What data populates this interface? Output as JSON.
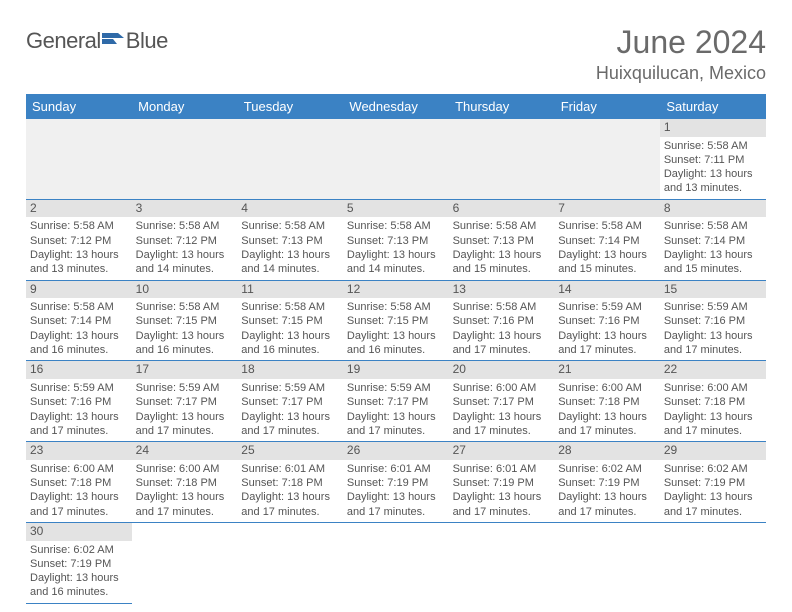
{
  "brand": {
    "part1": "General",
    "part2": "Blue"
  },
  "title": "June 2024",
  "location": "Huixquilucan, Mexico",
  "day_headers": [
    "Sunday",
    "Monday",
    "Tuesday",
    "Wednesday",
    "Thursday",
    "Friday",
    "Saturday"
  ],
  "colors": {
    "header_bg": "#3b82c4",
    "header_text": "#ffffff",
    "daynum_bg": "#e3e3e3",
    "border": "#3b82c4",
    "text": "#555555",
    "title_text": "#6a6a6a"
  },
  "leading_blanks": 6,
  "trailing_blanks": 6,
  "days": [
    {
      "n": "1",
      "sr": "Sunrise: 5:58 AM",
      "ss": "Sunset: 7:11 PM",
      "dl": "Daylight: 13 hours and 13 minutes."
    },
    {
      "n": "2",
      "sr": "Sunrise: 5:58 AM",
      "ss": "Sunset: 7:12 PM",
      "dl": "Daylight: 13 hours and 13 minutes."
    },
    {
      "n": "3",
      "sr": "Sunrise: 5:58 AM",
      "ss": "Sunset: 7:12 PM",
      "dl": "Daylight: 13 hours and 14 minutes."
    },
    {
      "n": "4",
      "sr": "Sunrise: 5:58 AM",
      "ss": "Sunset: 7:13 PM",
      "dl": "Daylight: 13 hours and 14 minutes."
    },
    {
      "n": "5",
      "sr": "Sunrise: 5:58 AM",
      "ss": "Sunset: 7:13 PM",
      "dl": "Daylight: 13 hours and 14 minutes."
    },
    {
      "n": "6",
      "sr": "Sunrise: 5:58 AM",
      "ss": "Sunset: 7:13 PM",
      "dl": "Daylight: 13 hours and 15 minutes."
    },
    {
      "n": "7",
      "sr": "Sunrise: 5:58 AM",
      "ss": "Sunset: 7:14 PM",
      "dl": "Daylight: 13 hours and 15 minutes."
    },
    {
      "n": "8",
      "sr": "Sunrise: 5:58 AM",
      "ss": "Sunset: 7:14 PM",
      "dl": "Daylight: 13 hours and 15 minutes."
    },
    {
      "n": "9",
      "sr": "Sunrise: 5:58 AM",
      "ss": "Sunset: 7:14 PM",
      "dl": "Daylight: 13 hours and 16 minutes."
    },
    {
      "n": "10",
      "sr": "Sunrise: 5:58 AM",
      "ss": "Sunset: 7:15 PM",
      "dl": "Daylight: 13 hours and 16 minutes."
    },
    {
      "n": "11",
      "sr": "Sunrise: 5:58 AM",
      "ss": "Sunset: 7:15 PM",
      "dl": "Daylight: 13 hours and 16 minutes."
    },
    {
      "n": "12",
      "sr": "Sunrise: 5:58 AM",
      "ss": "Sunset: 7:15 PM",
      "dl": "Daylight: 13 hours and 16 minutes."
    },
    {
      "n": "13",
      "sr": "Sunrise: 5:58 AM",
      "ss": "Sunset: 7:16 PM",
      "dl": "Daylight: 13 hours and 17 minutes."
    },
    {
      "n": "14",
      "sr": "Sunrise: 5:59 AM",
      "ss": "Sunset: 7:16 PM",
      "dl": "Daylight: 13 hours and 17 minutes."
    },
    {
      "n": "15",
      "sr": "Sunrise: 5:59 AM",
      "ss": "Sunset: 7:16 PM",
      "dl": "Daylight: 13 hours and 17 minutes."
    },
    {
      "n": "16",
      "sr": "Sunrise: 5:59 AM",
      "ss": "Sunset: 7:16 PM",
      "dl": "Daylight: 13 hours and 17 minutes."
    },
    {
      "n": "17",
      "sr": "Sunrise: 5:59 AM",
      "ss": "Sunset: 7:17 PM",
      "dl": "Daylight: 13 hours and 17 minutes."
    },
    {
      "n": "18",
      "sr": "Sunrise: 5:59 AM",
      "ss": "Sunset: 7:17 PM",
      "dl": "Daylight: 13 hours and 17 minutes."
    },
    {
      "n": "19",
      "sr": "Sunrise: 5:59 AM",
      "ss": "Sunset: 7:17 PM",
      "dl": "Daylight: 13 hours and 17 minutes."
    },
    {
      "n": "20",
      "sr": "Sunrise: 6:00 AM",
      "ss": "Sunset: 7:17 PM",
      "dl": "Daylight: 13 hours and 17 minutes."
    },
    {
      "n": "21",
      "sr": "Sunrise: 6:00 AM",
      "ss": "Sunset: 7:18 PM",
      "dl": "Daylight: 13 hours and 17 minutes."
    },
    {
      "n": "22",
      "sr": "Sunrise: 6:00 AM",
      "ss": "Sunset: 7:18 PM",
      "dl": "Daylight: 13 hours and 17 minutes."
    },
    {
      "n": "23",
      "sr": "Sunrise: 6:00 AM",
      "ss": "Sunset: 7:18 PM",
      "dl": "Daylight: 13 hours and 17 minutes."
    },
    {
      "n": "24",
      "sr": "Sunrise: 6:00 AM",
      "ss": "Sunset: 7:18 PM",
      "dl": "Daylight: 13 hours and 17 minutes."
    },
    {
      "n": "25",
      "sr": "Sunrise: 6:01 AM",
      "ss": "Sunset: 7:18 PM",
      "dl": "Daylight: 13 hours and 17 minutes."
    },
    {
      "n": "26",
      "sr": "Sunrise: 6:01 AM",
      "ss": "Sunset: 7:19 PM",
      "dl": "Daylight: 13 hours and 17 minutes."
    },
    {
      "n": "27",
      "sr": "Sunrise: 6:01 AM",
      "ss": "Sunset: 7:19 PM",
      "dl": "Daylight: 13 hours and 17 minutes."
    },
    {
      "n": "28",
      "sr": "Sunrise: 6:02 AM",
      "ss": "Sunset: 7:19 PM",
      "dl": "Daylight: 13 hours and 17 minutes."
    },
    {
      "n": "29",
      "sr": "Sunrise: 6:02 AM",
      "ss": "Sunset: 7:19 PM",
      "dl": "Daylight: 13 hours and 17 minutes."
    },
    {
      "n": "30",
      "sr": "Sunrise: 6:02 AM",
      "ss": "Sunset: 7:19 PM",
      "dl": "Daylight: 13 hours and 16 minutes."
    }
  ]
}
